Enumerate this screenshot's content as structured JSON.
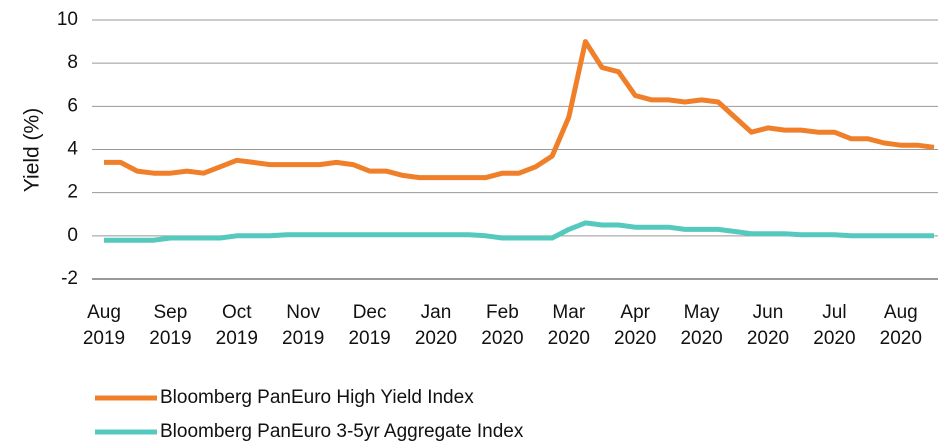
{
  "chart_data": {
    "type": "line",
    "ylabel": "Yield (%)",
    "categories": [
      "Aug 2019",
      null,
      null,
      null,
      "Sep 2019",
      null,
      null,
      null,
      "Oct 2019",
      null,
      null,
      null,
      "Nov 2019",
      null,
      null,
      null,
      "Dec 2019",
      null,
      null,
      null,
      "Jan 2020",
      null,
      null,
      null,
      "Feb 2020",
      null,
      null,
      null,
      "Mar 2020",
      null,
      null,
      null,
      "Apr 2020",
      null,
      null,
      null,
      "May 2020",
      null,
      null,
      null,
      "Jun 2020",
      null,
      null,
      null,
      "Jul 2020",
      null,
      null,
      null,
      "Aug 2020",
      null,
      null
    ],
    "series": [
      {
        "name": "Bloomberg PanEuro High Yield Index",
        "color": "#f07f2a",
        "values": [
          3.4,
          3.4,
          3.0,
          2.9,
          2.9,
          3.0,
          2.9,
          3.2,
          3.5,
          3.4,
          3.3,
          3.3,
          3.3,
          3.3,
          3.4,
          3.3,
          3.0,
          3.0,
          2.8,
          2.7,
          2.7,
          2.7,
          2.7,
          2.7,
          2.9,
          2.9,
          3.2,
          3.7,
          5.5,
          9.0,
          7.8,
          7.6,
          6.5,
          6.3,
          6.3,
          6.2,
          6.3,
          6.2,
          5.5,
          4.8,
          5.0,
          4.9,
          4.9,
          4.8,
          4.8,
          4.5,
          4.5,
          4.3,
          4.2,
          4.2,
          4.1
        ]
      },
      {
        "name": "Bloomberg PanEuro 3-5yr Aggregate Index",
        "color": "#56c9bf",
        "values": [
          -0.2,
          -0.2,
          -0.2,
          -0.2,
          -0.1,
          -0.1,
          -0.1,
          -0.1,
          0.0,
          0.0,
          0.0,
          0.05,
          0.05,
          0.05,
          0.05,
          0.05,
          0.05,
          0.05,
          0.05,
          0.05,
          0.05,
          0.05,
          0.05,
          0.0,
          -0.1,
          -0.1,
          -0.1,
          -0.1,
          0.3,
          0.6,
          0.5,
          0.5,
          0.4,
          0.4,
          0.4,
          0.3,
          0.3,
          0.3,
          0.2,
          0.1,
          0.1,
          0.1,
          0.05,
          0.05,
          0.05,
          0.0,
          0.0,
          0.0,
          0.0,
          0.0,
          0.0
        ]
      }
    ],
    "ylim": [
      -2,
      10
    ],
    "yticks": [
      -2,
      0,
      2,
      4,
      6,
      8,
      10
    ],
    "grid": true,
    "legend": "bottom"
  }
}
